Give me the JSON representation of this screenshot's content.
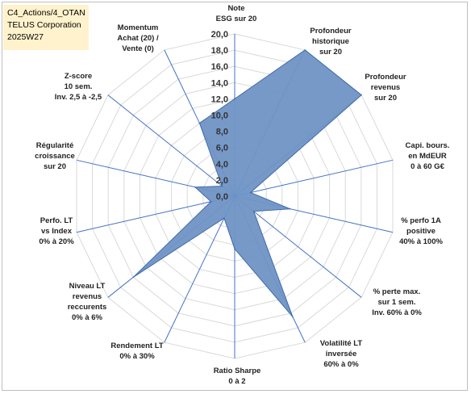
{
  "info": {
    "line1": "C4_Actions/4_OTAN",
    "line2": "TELUS Corporation",
    "line3": "2025W27"
  },
  "chart_data": {
    "type": "radar",
    "title": "",
    "rmin": 0,
    "rmax": 20,
    "tick_step": 2,
    "tick_labels": [
      "0,0",
      "2,0",
      "4,0",
      "6,0",
      "8,0",
      "10,0",
      "12,0",
      "14,0",
      "16,0",
      "18,0",
      "20,0"
    ],
    "grid": true,
    "legend": "none",
    "fill_color": "#6f93c5",
    "line_color": "#3f6aa8",
    "axes": [
      {
        "label": [
          "Note",
          "ESG sur 20"
        ],
        "value": 12.0
      },
      {
        "label": [
          "Profondeur",
          "historique",
          "sur 20"
        ],
        "value": 20.0
      },
      {
        "label": [
          "Profondeur",
          "revenus",
          "sur 20"
        ],
        "value": 20.0
      },
      {
        "label": [
          "Capi. bours.",
          "en MdEUR",
          "0 à 60 G€"
        ],
        "value": 2.0
      },
      {
        "label": [
          "% perfo 1A",
          "positive",
          "40% à 100%"
        ],
        "value": 7.0
      },
      {
        "label": [
          "% perte max.",
          "sur 1 sem.",
          "Inv. 60% à 0%"
        ],
        "value": 3.0
      },
      {
        "label": [
          "Volatilité LT",
          "inversée",
          "60% à 0%"
        ],
        "value": 16.5
      },
      {
        "label": [
          "Ratio Sharpe",
          "0 à 2"
        ],
        "value": 6.5
      },
      {
        "label": [
          "Rendement LT",
          "0% à 30%"
        ],
        "value": 3.0
      },
      {
        "label": [
          "Niveau LT",
          "revenus",
          "reccurents",
          "0% à 6%"
        ],
        "value": 16.0
      },
      {
        "label": [
          "Perfo. LT",
          "vs Index",
          "0% à 20%"
        ],
        "value": 3.0
      },
      {
        "label": [
          "Régularité",
          "croissance",
          "sur 20"
        ],
        "value": 5.0
      },
      {
        "label": [
          "Z-score",
          "10 sem.",
          "Inv. 2,5 à -2,5"
        ],
        "value": 2.0
      },
      {
        "label": [
          "Momentum",
          "Achat (20) /",
          "Vente (0)"
        ],
        "value": 10.0
      }
    ]
  }
}
